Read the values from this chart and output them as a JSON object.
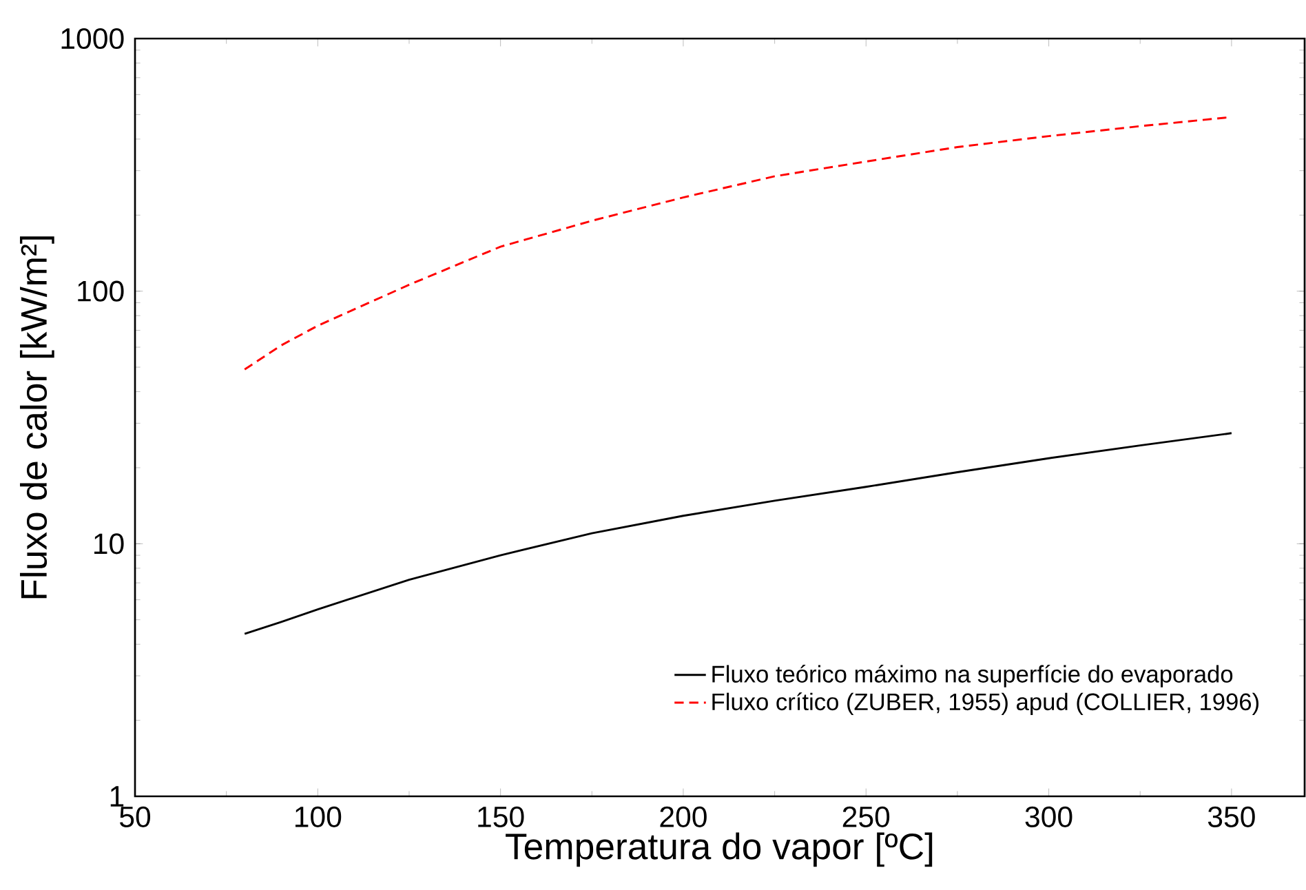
{
  "chart_data": {
    "type": "line",
    "xlabel": "Temperatura do vapor [ºC]",
    "ylabel": "Fluxo de calor [kW/m²]",
    "log": "y",
    "xlim": [
      50,
      370
    ],
    "ylim": [
      1,
      1000
    ],
    "xticks": [
      50,
      100,
      150,
      200,
      250,
      300,
      350
    ],
    "yticks": [
      1,
      10,
      100,
      1000
    ],
    "grid": false,
    "legend": "bottom right",
    "series": [
      {
        "name": "Fluxo teórico máximo na superfície do evaporado",
        "color": "#000000",
        "line_style": "solid",
        "x": [
          80,
          90,
          100,
          125,
          150,
          175,
          200,
          225,
          250,
          275,
          300,
          325,
          350
        ],
        "values": [
          4.4,
          4.9,
          5.5,
          7.2,
          9.0,
          11.0,
          12.9,
          14.8,
          16.8,
          19.2,
          21.8,
          24.5,
          27.4
        ]
      },
      {
        "name": "Fluxo crítico (ZUBER, 1955) apud (COLLIER, 1996)",
        "color": "#ff0000",
        "line_style": "dashed",
        "x": [
          80,
          90,
          100,
          125,
          150,
          175,
          200,
          225,
          250,
          275,
          300,
          325,
          350
        ],
        "values": [
          49,
          61,
          73,
          106,
          150,
          190,
          235,
          285,
          326,
          372,
          411,
          450,
          489
        ]
      }
    ]
  }
}
